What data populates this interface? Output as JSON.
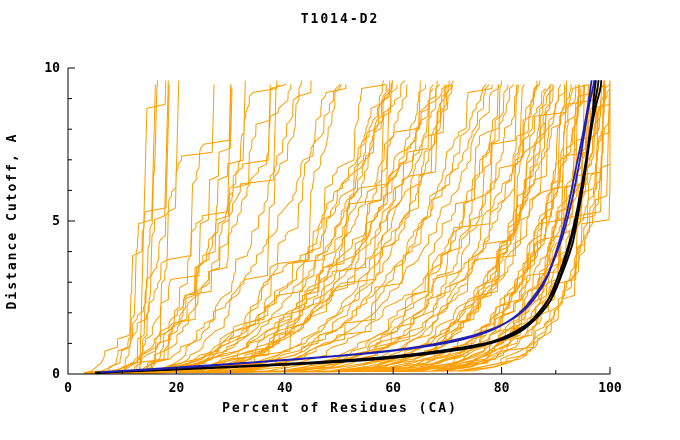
{
  "title": "T1014-D2",
  "chart_data": {
    "type": "line",
    "title": "T1014-D2",
    "xlabel": "Percent of Residues (CA)",
    "ylabel": "Distance Cutoff, A",
    "xlim": [
      0,
      100
    ],
    "ylim": [
      0,
      10
    ],
    "x_major_ticks": [
      0,
      20,
      40,
      60,
      80,
      100
    ],
    "x_minor_ticks": [
      10,
      30,
      50,
      70,
      90
    ],
    "y_major_ticks": [
      0,
      5,
      10
    ],
    "y_minor_ticks": [
      1,
      2,
      3,
      4,
      6,
      7,
      8,
      9
    ],
    "grid": false,
    "colors": {
      "ensemble": "#ff9d00",
      "highlight_black": "#000000",
      "highlight_blue": "#1f1fb4",
      "axis": "#000000",
      "text": "#000000",
      "background": "#ffffff"
    },
    "ensemble": {
      "count": 95,
      "seed": 42,
      "start_x_min": 4,
      "start_x_max": 14,
      "top_x_min": 12,
      "top_x_max": 100,
      "shape_base": 0.08,
      "shape_span": 0.55,
      "jitter_min": 1.2,
      "jitter_max": 3.6,
      "y_top_min": 9.45,
      "y_top_span": 0.2,
      "line_width": 1
    },
    "highlight_series": [
      {
        "name": "model-black-1",
        "color": "#000000",
        "width": 1.8,
        "points": [
          [
            5,
            0.05
          ],
          [
            20,
            0.15
          ],
          [
            40,
            0.3
          ],
          [
            55,
            0.45
          ],
          [
            65,
            0.62
          ],
          [
            75,
            0.88
          ],
          [
            82,
            1.25
          ],
          [
            86,
            1.75
          ],
          [
            89,
            2.4
          ],
          [
            91,
            3.2
          ],
          [
            93,
            4.2
          ],
          [
            94,
            5.1
          ],
          [
            95,
            6.1
          ],
          [
            96,
            7.3
          ],
          [
            96.6,
            8.1
          ],
          [
            97,
            9.0
          ],
          [
            97.4,
            9.6
          ]
        ]
      },
      {
        "name": "model-black-2",
        "color": "#000000",
        "width": 1.8,
        "points": [
          [
            6,
            0.05
          ],
          [
            25,
            0.2
          ],
          [
            45,
            0.38
          ],
          [
            60,
            0.58
          ],
          [
            72,
            0.85
          ],
          [
            80,
            1.15
          ],
          [
            85,
            1.65
          ],
          [
            88,
            2.25
          ],
          [
            90,
            3.0
          ],
          [
            92,
            4.0
          ],
          [
            93.5,
            5.0
          ],
          [
            95,
            6.4
          ],
          [
            96.2,
            7.6
          ],
          [
            97.2,
            8.6
          ],
          [
            98.2,
            9.3
          ],
          [
            98.4,
            9.6
          ]
        ]
      },
      {
        "name": "model-black-3",
        "color": "#000000",
        "width": 1.8,
        "points": [
          [
            5,
            0.04
          ],
          [
            18,
            0.13
          ],
          [
            38,
            0.3
          ],
          [
            52,
            0.45
          ],
          [
            68,
            0.72
          ],
          [
            78,
            1.05
          ],
          [
            84,
            1.55
          ],
          [
            87,
            2.05
          ],
          [
            90,
            2.85
          ],
          [
            92,
            3.85
          ],
          [
            94,
            5.25
          ],
          [
            95.5,
            6.9
          ],
          [
            96.6,
            8.3
          ],
          [
            97.6,
            9.25
          ],
          [
            97.9,
            9.6
          ]
        ]
      },
      {
        "name": "model-blue-1",
        "color": "#1f1fb4",
        "width": 1.8,
        "points": [
          [
            6,
            0.06
          ],
          [
            22,
            0.22
          ],
          [
            40,
            0.46
          ],
          [
            58,
            0.72
          ],
          [
            70,
            1.02
          ],
          [
            78,
            1.42
          ],
          [
            83,
            1.95
          ],
          [
            86,
            2.55
          ],
          [
            88.5,
            3.25
          ],
          [
            90.5,
            4.25
          ],
          [
            92,
            5.25
          ],
          [
            93.5,
            6.55
          ],
          [
            95,
            7.85
          ],
          [
            96,
            8.85
          ],
          [
            96.6,
            9.6
          ]
        ]
      },
      {
        "name": "model-blue-2",
        "color": "#1f1fb4",
        "width": 1.8,
        "points": [
          [
            7,
            0.07
          ],
          [
            25,
            0.27
          ],
          [
            45,
            0.52
          ],
          [
            62,
            0.82
          ],
          [
            73,
            1.18
          ],
          [
            80,
            1.6
          ],
          [
            84.5,
            2.15
          ],
          [
            87.5,
            2.85
          ],
          [
            89.5,
            3.65
          ],
          [
            91.5,
            4.65
          ],
          [
            93,
            5.7
          ],
          [
            94.5,
            7.05
          ],
          [
            95.8,
            8.45
          ],
          [
            96.9,
            9.4
          ],
          [
            97.1,
            9.6
          ]
        ]
      }
    ]
  }
}
